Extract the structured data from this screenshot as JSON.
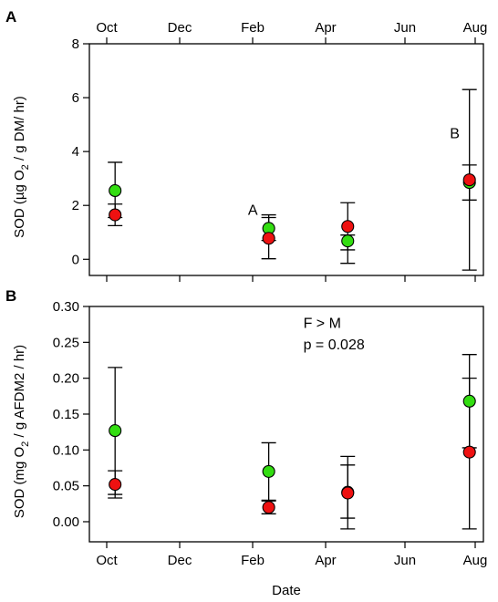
{
  "chart_data": [
    {
      "type": "scatter",
      "panel_letter": "A",
      "ylabel_parts": [
        "SOD (µg O",
        "2",
        " / g DM/ hr)"
      ],
      "x_tick_labels": [
        "Oct",
        "Dec",
        "Feb",
        "Apr",
        "Jun",
        "Aug"
      ],
      "x_ticks_top": [
        "Oct",
        "Dec",
        "Feb",
        "Apr",
        "Jun",
        "Aug"
      ],
      "y_ticks": [
        "0",
        "2",
        "4",
        "6",
        "8"
      ],
      "ylim": [
        -0.6,
        8
      ],
      "xlim": [
        "2010-09-20",
        "2011-08-20"
      ],
      "annotations": [
        {
          "text": "A",
          "x": "2011-01-28",
          "y": 1.65
        },
        {
          "text": "B",
          "x": "2011-07-10",
          "y": 4.5
        }
      ],
      "series": [
        {
          "color": "#33dd11",
          "points": [
            {
              "x": "2010-10-08",
              "y": 2.55,
              "lo": 1.55,
              "hi": 3.6
            },
            {
              "x": "2011-02-14",
              "y": 1.15,
              "lo": 0.7,
              "hi": 1.65
            },
            {
              "x": "2011-04-18",
              "y": 0.68,
              "lo": 0.35,
              "hi": 0.9
            },
            {
              "x": "2011-07-27",
              "y": 2.85,
              "lo": 2.2,
              "hi": 3.5
            }
          ]
        },
        {
          "color": "#ee1111",
          "points": [
            {
              "x": "2010-10-08",
              "y": 1.65,
              "lo": 1.25,
              "hi": 2.05
            },
            {
              "x": "2011-02-14",
              "y": 0.78,
              "lo": 0.02,
              "hi": 1.55
            },
            {
              "x": "2011-04-18",
              "y": 1.22,
              "lo": -0.15,
              "hi": 2.1
            },
            {
              "x": "2011-07-27",
              "y": 2.95,
              "lo": -0.4,
              "hi": 6.3
            }
          ]
        }
      ]
    },
    {
      "type": "scatter",
      "panel_letter": "B",
      "ylabel_parts": [
        "SOD (mg O",
        "2",
        " / g AFDM2 / hr)"
      ],
      "xlabel": "Date",
      "x_tick_labels": [
        "Oct",
        "Dec",
        "Feb",
        "Apr",
        "Jun",
        "Aug"
      ],
      "y_ticks": [
        "0.00",
        "0.05",
        "0.10",
        "0.15",
        "0.20",
        "0.25",
        "0.30"
      ],
      "ylim": [
        -0.028,
        0.3
      ],
      "xlim": [
        "2010-09-20",
        "2011-08-20"
      ],
      "annotations": [
        {
          "text": "F > M",
          "x": "2011-03-14",
          "y": 0.27
        },
        {
          "text": "p = 0.028",
          "x": "2011-03-14",
          "y": 0.24
        }
      ],
      "series": [
        {
          "color": "#33dd11",
          "points": [
            {
              "x": "2010-10-08",
              "y": 0.127,
              "lo": 0.038,
              "hi": 0.215
            },
            {
              "x": "2011-02-14",
              "y": 0.07,
              "lo": 0.03,
              "hi": 0.11
            },
            {
              "x": "2011-04-18",
              "y": 0.041,
              "lo": 0.005,
              "hi": 0.079
            },
            {
              "x": "2011-07-27",
              "y": 0.168,
              "lo": 0.103,
              "hi": 0.233
            }
          ]
        },
        {
          "color": "#ee1111",
          "points": [
            {
              "x": "2010-10-08",
              "y": 0.052,
              "lo": 0.033,
              "hi": 0.071
            },
            {
              "x": "2011-02-14",
              "y": 0.02,
              "lo": 0.011,
              "hi": 0.029
            },
            {
              "x": "2011-04-18",
              "y": 0.04,
              "lo": -0.01,
              "hi": 0.091
            },
            {
              "x": "2011-07-27",
              "y": 0.097,
              "lo": -0.01,
              "hi": 0.2
            }
          ]
        }
      ]
    }
  ]
}
